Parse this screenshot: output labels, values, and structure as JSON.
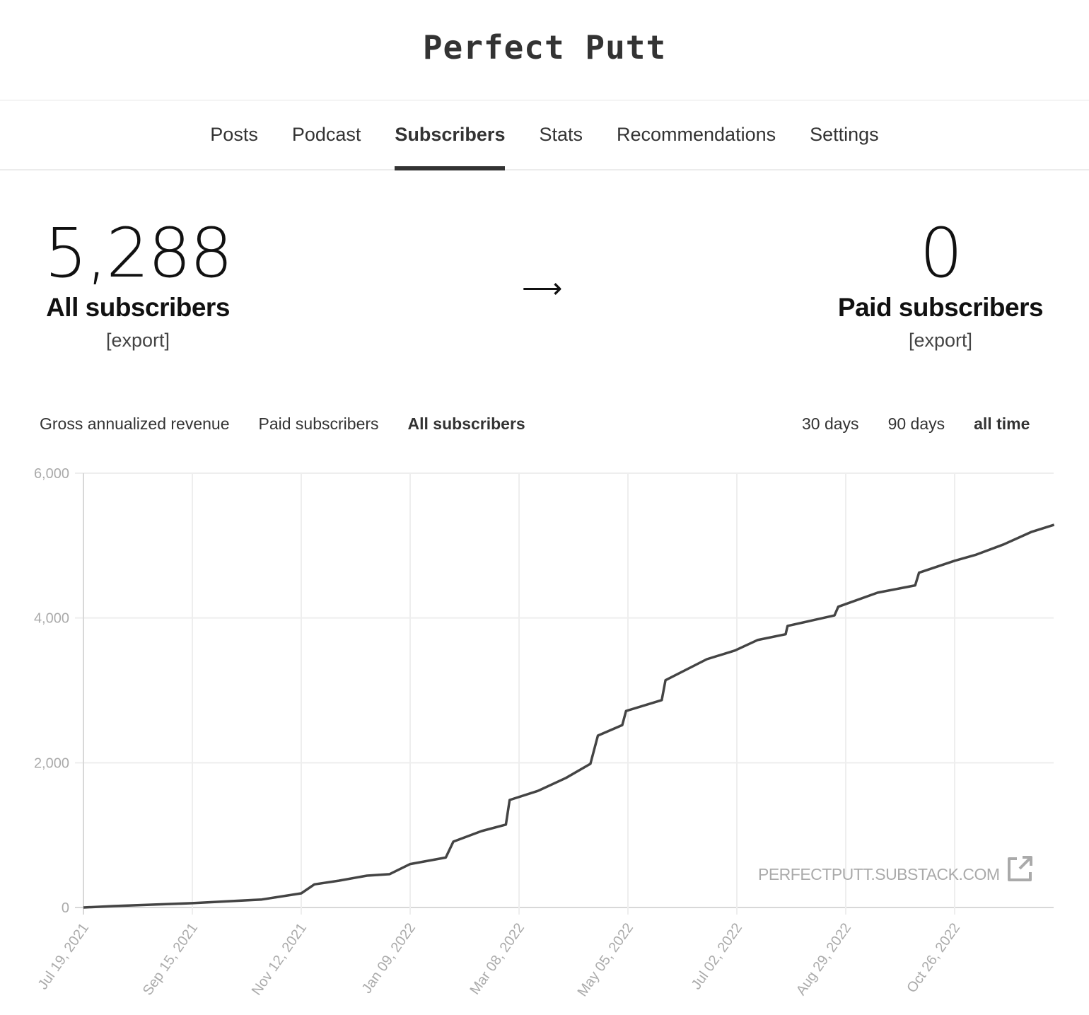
{
  "header": {
    "title": "Perfect Putt"
  },
  "nav": {
    "items": [
      {
        "label": "Posts"
      },
      {
        "label": "Podcast"
      },
      {
        "label": "Subscribers",
        "active": true
      },
      {
        "label": "Stats"
      },
      {
        "label": "Recommendations"
      },
      {
        "label": "Settings"
      }
    ]
  },
  "stats": {
    "all": {
      "value": "5,288",
      "label": "All subscribers",
      "export": "[export]"
    },
    "arrow": "⟶",
    "paid": {
      "value": "0",
      "label": "Paid subscribers",
      "export": "[export]"
    }
  },
  "metric_tabs": [
    {
      "label": "Gross annualized revenue"
    },
    {
      "label": "Paid subscribers"
    },
    {
      "label": "All subscribers",
      "active": true
    }
  ],
  "range_tabs": [
    {
      "label": "30 days"
    },
    {
      "label": "90 days"
    },
    {
      "label": "all time",
      "active": true
    }
  ],
  "watermark": {
    "text": "PERFECTPUTT.SUBSTACK.COM",
    "icon": "external-link-icon"
  },
  "chart_data": {
    "type": "line",
    "title": "",
    "xlabel": "",
    "ylabel": "",
    "ylim": [
      0,
      6000
    ],
    "xlim": [
      "2021-07-19",
      "2022-12-18"
    ],
    "grid": true,
    "line_color": "#444444",
    "y_ticks": [
      "0",
      "2,000",
      "4,000",
      "6,000"
    ],
    "x_ticks": [
      "Jul 19, 2021",
      "Sep 15, 2021",
      "Nov 12, 2021",
      "Jan 09, 2022",
      "Mar 08, 2022",
      "May 05, 2022",
      "Jul 02, 2022",
      "Aug 29, 2022",
      "Oct 26, 2022"
    ],
    "series": [
      {
        "x": [
          "2021-07-19",
          "2021-08-04",
          "2021-09-15",
          "2021-10-22",
          "2021-11-12",
          "2021-11-19",
          "2021-12-02",
          "2021-12-17",
          "2021-12-29",
          "2022-01-09",
          "2022-01-28",
          "2022-02-01",
          "2022-02-16",
          "2022-03-01",
          "2022-03-03",
          "2022-03-18",
          "2022-04-02",
          "2022-04-15",
          "2022-04-19",
          "2022-05-02",
          "2022-05-04",
          "2022-05-23",
          "2022-05-25",
          "2022-06-16",
          "2022-07-01",
          "2022-07-13",
          "2022-07-28",
          "2022-07-29",
          "2022-08-23",
          "2022-08-25",
          "2022-09-15",
          "2022-10-05",
          "2022-10-07",
          "2022-10-26",
          "2022-11-06",
          "2022-11-21",
          "2022-12-06",
          "2022-12-18"
        ],
        "y": [
          0,
          20,
          60,
          110,
          195,
          320,
          370,
          440,
          460,
          600,
          690,
          910,
          1055,
          1145,
          1485,
          1610,
          1790,
          1985,
          2375,
          2520,
          2715,
          2865,
          3140,
          3430,
          3550,
          3695,
          3775,
          3890,
          4035,
          4155,
          4350,
          4450,
          4625,
          4790,
          4870,
          5015,
          5190,
          5288
        ]
      }
    ]
  }
}
